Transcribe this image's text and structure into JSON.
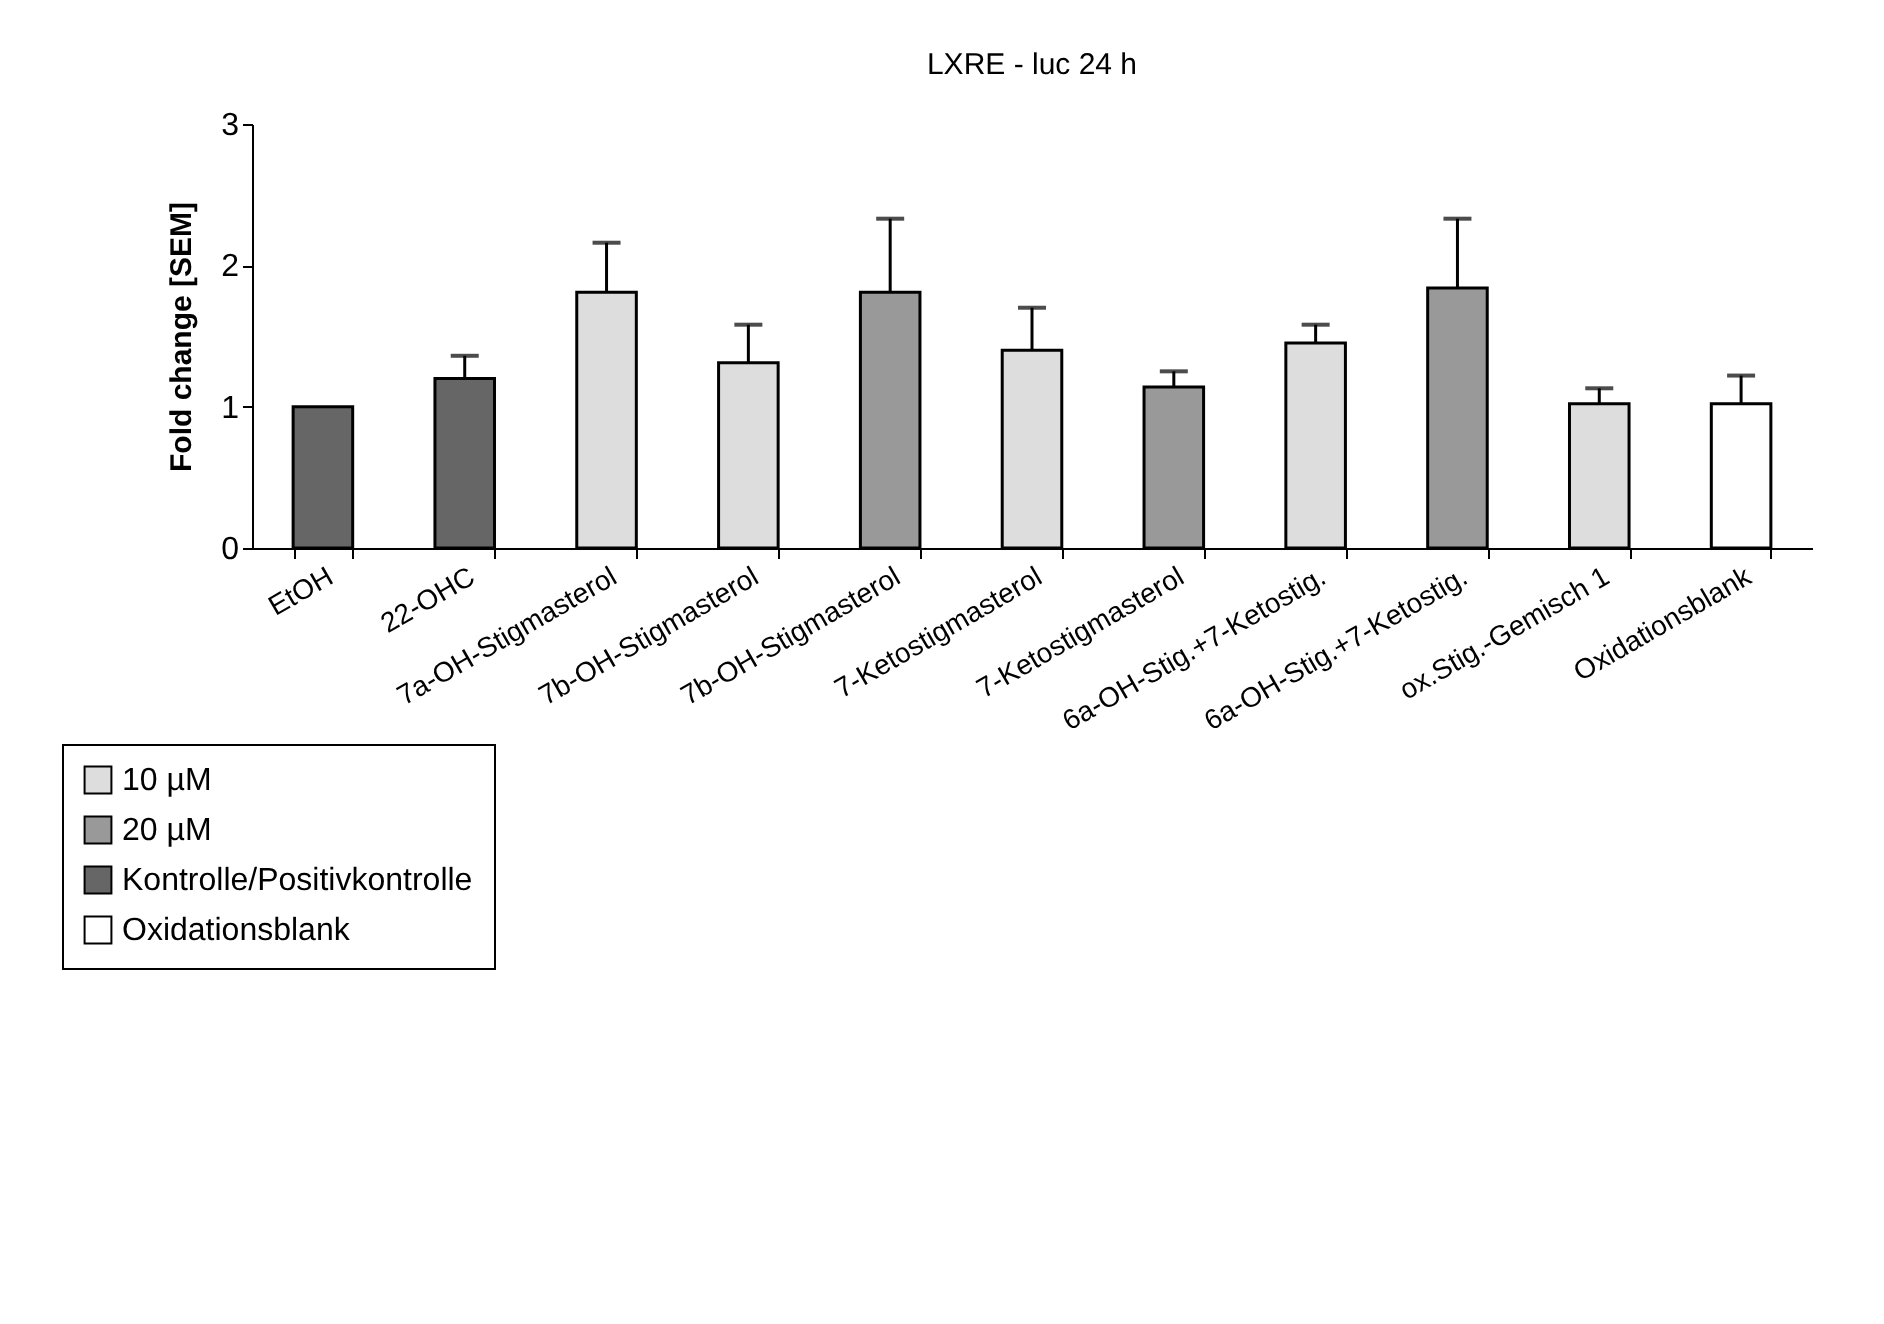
{
  "chart_data": {
    "type": "bar",
    "title": "LXRE - luc  24 h",
    "ylabel": "Fold change [SEM]",
    "categories": [
      "EtOH",
      "22-OHC",
      "7a-OH-Stigmasterol",
      "7b-OH-Stigmasterol",
      "7b-OH-Stigmasterol",
      "7-Ketostigmasterol",
      "7-Ketostigmasterol",
      "6a-OH-Stig.+7-Ketostig.",
      "6a-OH-Stig.+7-Ketostig.",
      "ox.Stig.-Gemisch 1",
      "Oxidationsblank"
    ],
    "series": [
      {
        "name": "10 µM",
        "color": "#dddddd",
        "values": [
          null,
          null,
          1.81,
          1.31,
          null,
          1.4,
          null,
          1.45,
          null,
          1.02,
          null
        ],
        "errors": [
          null,
          null,
          [
            1.81,
            2.16
          ],
          [
            1.31,
            1.58
          ],
          null,
          [
            1.4,
            1.7
          ],
          null,
          [
            1.45,
            1.58
          ],
          null,
          [
            1.02,
            1.13
          ],
          null
        ]
      },
      {
        "name": "20 µM",
        "color": "#999999",
        "values": [
          null,
          null,
          null,
          null,
          1.81,
          null,
          1.14,
          null,
          1.84,
          null,
          null
        ],
        "errors": [
          null,
          null,
          null,
          null,
          [
            1.81,
            2.33
          ],
          null,
          [
            1.14,
            1.25
          ],
          null,
          [
            1.84,
            2.33
          ],
          null,
          null
        ]
      },
      {
        "name": "Kontrolle/Positivkontrolle",
        "color": "#666666",
        "values": [
          1.0,
          1.2,
          null,
          null,
          null,
          null,
          null,
          null,
          null,
          null,
          null
        ],
        "errors": [
          null,
          [
            1.2,
            1.36
          ],
          null,
          null,
          null,
          null,
          null,
          null,
          null,
          null,
          null
        ]
      },
      {
        "name": "Oxidationsblank",
        "color": "#ffffff",
        "values": [
          null,
          null,
          null,
          null,
          null,
          null,
          null,
          null,
          null,
          null,
          1.02
        ],
        "errors": [
          null,
          null,
          null,
          null,
          null,
          null,
          null,
          null,
          null,
          null,
          [
            1.02,
            1.22
          ]
        ]
      }
    ],
    "ylim": [
      0,
      3
    ],
    "yticks": [
      0,
      1,
      2,
      3
    ],
    "grid": false,
    "legend": "bottom left"
  }
}
